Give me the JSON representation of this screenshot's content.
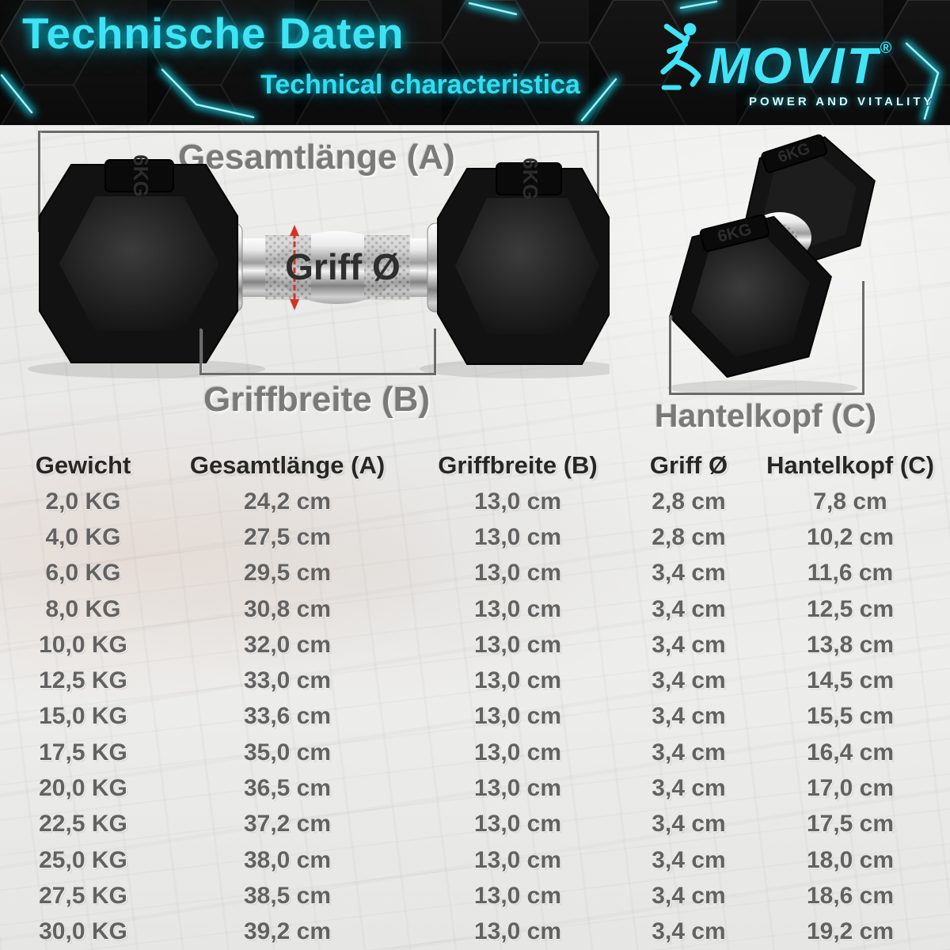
{
  "header": {
    "title": "Technische Daten",
    "subtitle": "Technical characteristica",
    "brand": {
      "name": "MOVIT",
      "registered": "®",
      "tagline": "POWER AND VITALITY"
    }
  },
  "icons": {
    "brand_figure": "runner-icon"
  },
  "diagram": {
    "total_length_label": "Gesamtlänge (A)",
    "grip_width_label": "Griffbreite (B)",
    "grip_diameter_label": "Griff Ø",
    "head_label": "Hantelkopf (C)",
    "weight_marking": "6KG"
  },
  "table": {
    "columns": [
      "Gewicht",
      "Gesamtlänge (A)",
      "Griffbreite (B)",
      "Griff Ø",
      "Hantelkopf (C)"
    ],
    "rows": [
      [
        "2,0 KG",
        "24,2 cm",
        "13,0 cm",
        "2,8 cm",
        "7,8 cm"
      ],
      [
        "4,0 KG",
        "27,5 cm",
        "13,0 cm",
        "2,8 cm",
        "10,2 cm"
      ],
      [
        "6,0 KG",
        "29,5 cm",
        "13,0 cm",
        "3,4 cm",
        "11,6 cm"
      ],
      [
        "8,0 KG",
        "30,8 cm",
        "13,0 cm",
        "3,4 cm",
        "12,5 cm"
      ],
      [
        "10,0 KG",
        "32,0 cm",
        "13,0 cm",
        "3,4 cm",
        "13,8 cm"
      ],
      [
        "12,5 KG",
        "33,0 cm",
        "13,0 cm",
        "3,4 cm",
        "14,5 cm"
      ],
      [
        "15,0 KG",
        "33,6 cm",
        "13,0 cm",
        "3,4 cm",
        "15,5 cm"
      ],
      [
        "17,5 KG",
        "35,0 cm",
        "13,0 cm",
        "3,4 cm",
        "16,4 cm"
      ],
      [
        "20,0 KG",
        "36,5 cm",
        "13,0 cm",
        "3,4 cm",
        "17,0 cm"
      ],
      [
        "22,5 KG",
        "37,2 cm",
        "13,0 cm",
        "3,4 cm",
        "17,5 cm"
      ],
      [
        "25,0 KG",
        "38,0 cm",
        "13,0 cm",
        "3,4 cm",
        "18,0 cm"
      ],
      [
        "27,5 KG",
        "38,5 cm",
        "13,0 cm",
        "3,4 cm",
        "18,6 cm"
      ],
      [
        "30,0 KG",
        "39,2 cm",
        "13,0 cm",
        "3,4 cm",
        "19,2 cm"
      ]
    ]
  },
  "colors": {
    "accent_cyan": "#3fe3f4",
    "header_black": "#0b0b0b",
    "bracket_gray": "#6a6a6a",
    "table_text_gray": "#626262",
    "arrow_red": "#d63327"
  }
}
